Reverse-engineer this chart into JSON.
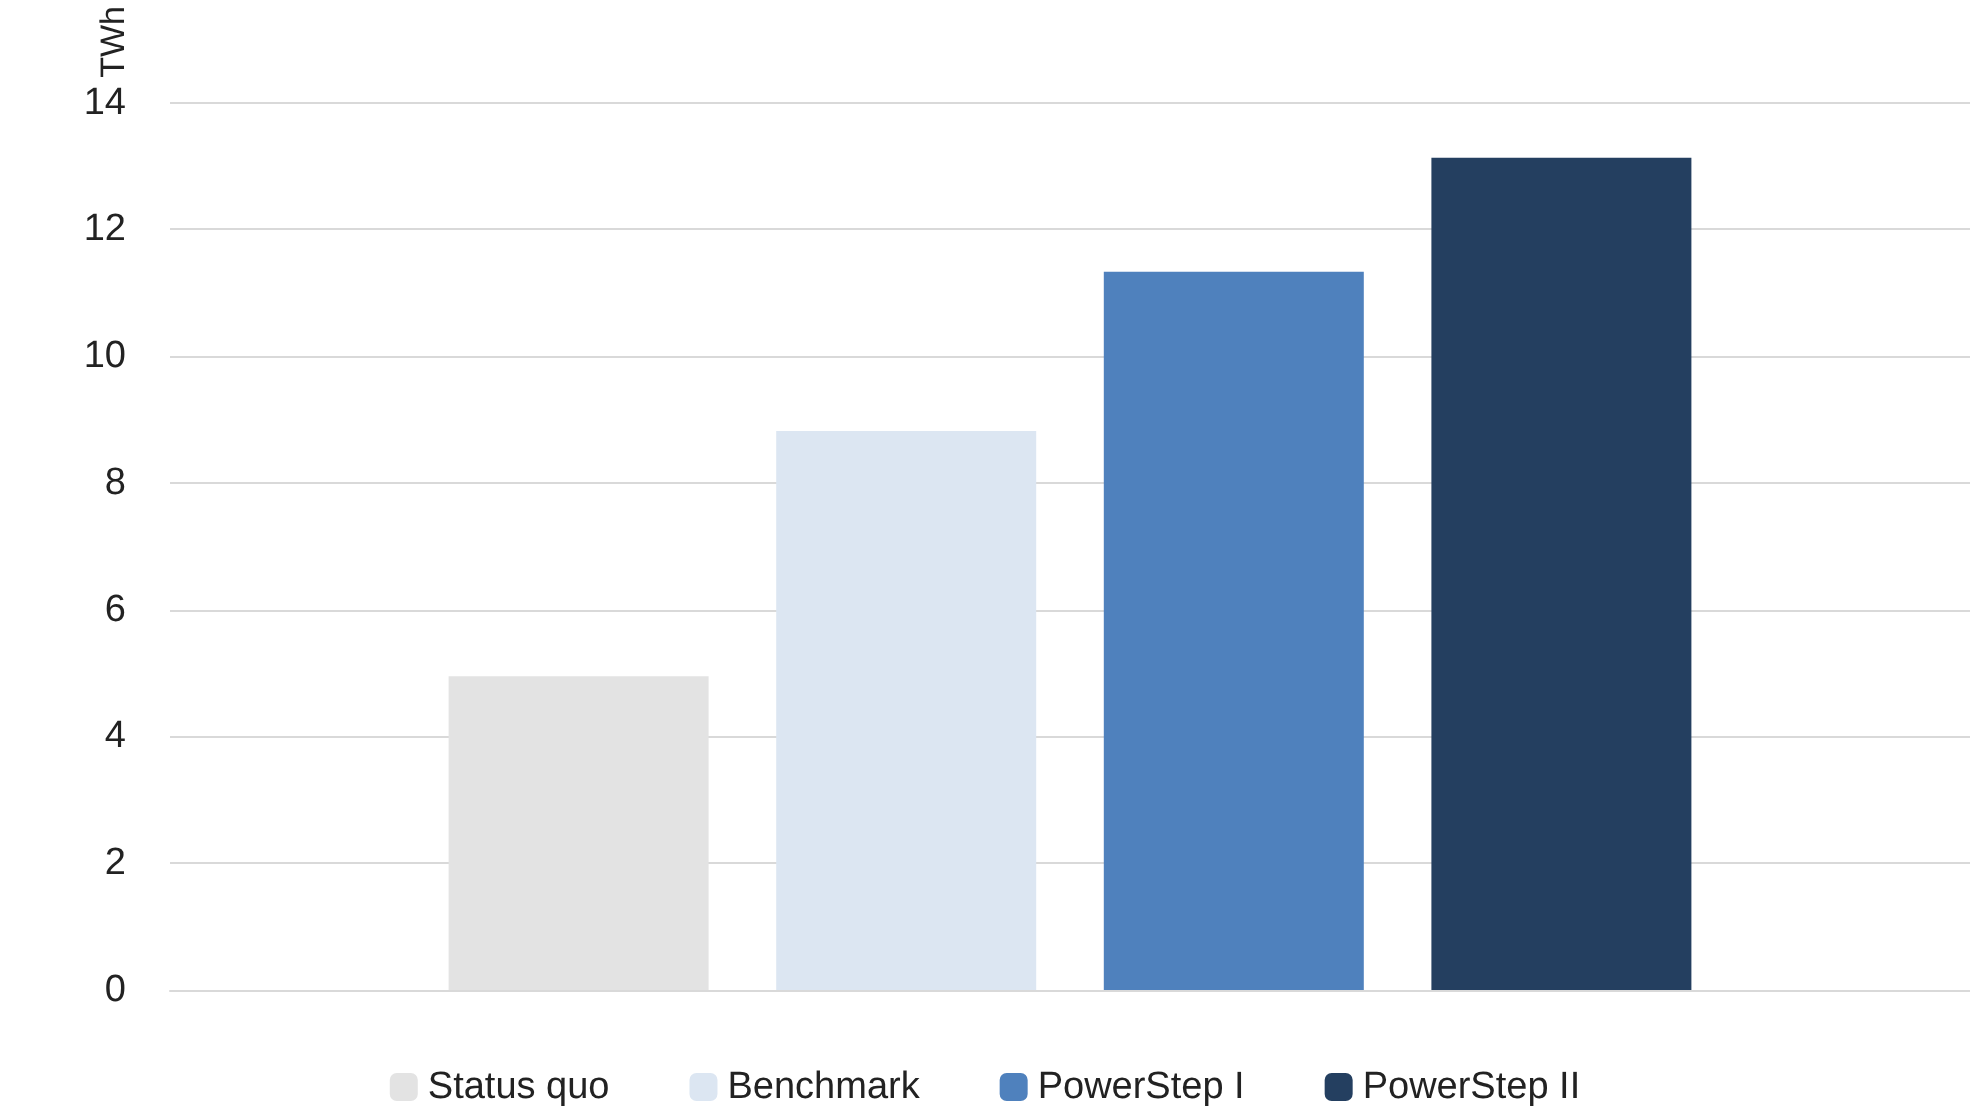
{
  "chart_data": {
    "type": "bar",
    "ylabel": "TWh",
    "categories": [
      null
    ],
    "series": [
      {
        "name": "Status quo",
        "color": "#e3e3e3",
        "values": [
          4.95
        ]
      },
      {
        "name": "Benchmark",
        "color": "#dce6f2",
        "values": [
          8.82
        ]
      },
      {
        "name": "PowerStep I",
        "color": "#4f81bd",
        "values": [
          11.33
        ]
      },
      {
        "name": "PowerStep II",
        "color": "#243f60",
        "values": [
          13.13
        ]
      }
    ],
    "ylim": [
      0,
      14
    ],
    "yticks": [
      0,
      2,
      4,
      6,
      8,
      10,
      12,
      14
    ],
    "grid": "y",
    "legend": "bottom"
  }
}
